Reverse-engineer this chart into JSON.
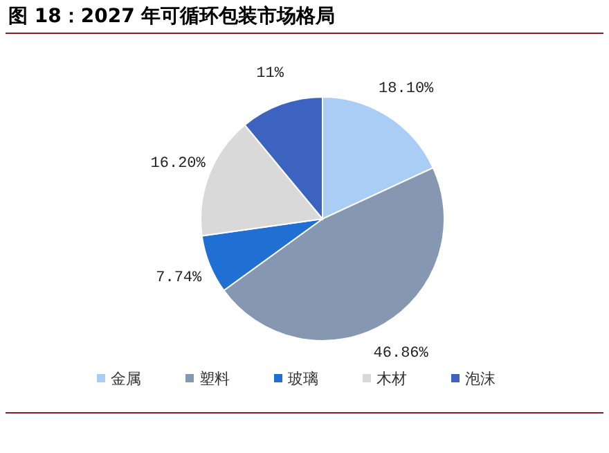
{
  "chart_data": {
    "type": "pie",
    "title": "图 18：2027 年可循环包装市场格局",
    "categories": [
      "金属",
      "塑料",
      "玻璃",
      "木材",
      "泡沫"
    ],
    "values": [
      18.1,
      46.86,
      7.74,
      16.2,
      11
    ],
    "value_labels": [
      "18.10%",
      "46.86%",
      "7.74%",
      "16.20%",
      "11%"
    ],
    "colors": [
      "#a9cdf4",
      "#8597b1",
      "#1f70d2",
      "#d9d9d9",
      "#3c63c0"
    ],
    "legend": "bottom"
  }
}
